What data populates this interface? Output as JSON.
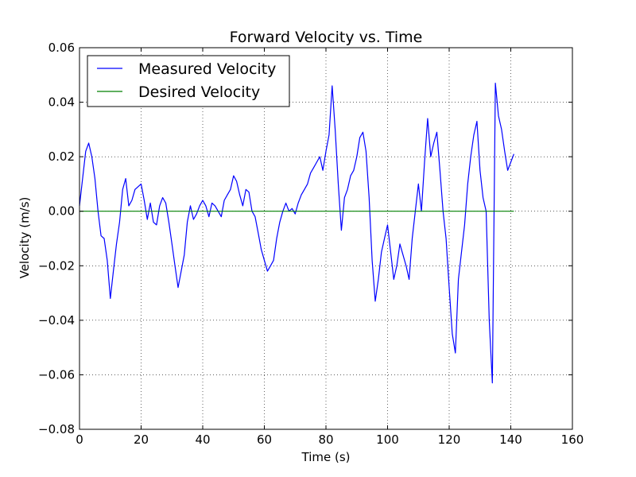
{
  "chart_data": {
    "type": "line",
    "title": "Forward Velocity vs. Time",
    "xlabel": "Time (s)",
    "ylabel": "Velocity (m/s)",
    "xlim": [
      0,
      160
    ],
    "ylim": [
      -0.08,
      0.06
    ],
    "xticks": [
      0,
      20,
      40,
      60,
      80,
      100,
      120,
      140,
      160
    ],
    "xtick_labels": [
      "0",
      "20",
      "40",
      "60",
      "80",
      "100",
      "120",
      "140",
      "160"
    ],
    "yticks": [
      -0.08,
      -0.06,
      -0.04,
      -0.02,
      0.0,
      0.02,
      0.04,
      0.06
    ],
    "ytick_labels": [
      "−0.08",
      "−0.06",
      "−0.04",
      "−0.02",
      "0.00",
      "0.02",
      "0.04",
      "0.06"
    ],
    "grid": true,
    "legend_position": "top-left",
    "series": [
      {
        "name": "Measured Velocity",
        "color": "#0000ff",
        "x": [
          0,
          1,
          2,
          3,
          4,
          5,
          6,
          7,
          8,
          9,
          10,
          11,
          12,
          13,
          14,
          15,
          16,
          17,
          18,
          19,
          20,
          21,
          22,
          23,
          24,
          25,
          26,
          27,
          28,
          29,
          30,
          31,
          32,
          33,
          34,
          35,
          36,
          37,
          38,
          39,
          40,
          41,
          42,
          43,
          44,
          45,
          46,
          47,
          48,
          49,
          50,
          51,
          52,
          53,
          54,
          55,
          56,
          57,
          58,
          59,
          60,
          61,
          62,
          63,
          64,
          65,
          66,
          67,
          68,
          69,
          70,
          71,
          72,
          73,
          74,
          75,
          76,
          77,
          78,
          79,
          80,
          81,
          82,
          83,
          84,
          85,
          86,
          87,
          88,
          89,
          90,
          91,
          92,
          93,
          94,
          95,
          96,
          97,
          98,
          99,
          100,
          101,
          102,
          103,
          104,
          105,
          106,
          107,
          108,
          109,
          110,
          111,
          112,
          113,
          114,
          115,
          116,
          117,
          118,
          119,
          120,
          121,
          122,
          123,
          124,
          125,
          126,
          127,
          128,
          129,
          130,
          131,
          132,
          133,
          134,
          135,
          136,
          137,
          138,
          139,
          140,
          141
        ],
        "y": [
          0.002,
          0.012,
          0.022,
          0.025,
          0.02,
          0.012,
          0.0,
          -0.009,
          -0.01,
          -0.018,
          -0.032,
          -0.022,
          -0.012,
          -0.004,
          0.008,
          0.012,
          0.002,
          0.004,
          0.008,
          0.009,
          0.01,
          0.004,
          -0.003,
          0.003,
          -0.004,
          -0.005,
          0.002,
          0.005,
          0.003,
          -0.004,
          -0.012,
          -0.02,
          -0.028,
          -0.022,
          -0.016,
          -0.004,
          0.002,
          -0.003,
          -0.001,
          0.002,
          0.004,
          0.002,
          -0.002,
          0.003,
          0.002,
          0.0,
          -0.002,
          0.004,
          0.006,
          0.008,
          0.013,
          0.011,
          0.006,
          0.002,
          0.008,
          0.007,
          0.0,
          -0.002,
          -0.008,
          -0.014,
          -0.018,
          -0.022,
          -0.02,
          -0.018,
          -0.01,
          -0.004,
          0.0,
          0.003,
          0.0,
          0.001,
          -0.001,
          0.003,
          0.006,
          0.008,
          0.01,
          0.014,
          0.016,
          0.018,
          0.02,
          0.015,
          0.022,
          0.028,
          0.046,
          0.03,
          0.01,
          -0.007,
          0.005,
          0.008,
          0.013,
          0.015,
          0.02,
          0.027,
          0.029,
          0.022,
          0.005,
          -0.018,
          -0.033,
          -0.025,
          -0.015,
          -0.01,
          -0.005,
          -0.015,
          -0.025,
          -0.02,
          -0.012,
          -0.016,
          -0.02,
          -0.025,
          -0.01,
          0.0,
          0.01,
          0.0,
          0.018,
          0.034,
          0.02,
          0.025,
          0.029,
          0.015,
          0.0,
          -0.01,
          -0.028,
          -0.045,
          -0.052,
          -0.025,
          -0.015,
          -0.005,
          0.01,
          0.02,
          0.028,
          0.033,
          0.015,
          0.005,
          0.0,
          -0.04,
          -0.063,
          0.047,
          0.035,
          0.03,
          0.022,
          0.015,
          0.018,
          0.021
        ]
      },
      {
        "name": "Desired Velocity",
        "color": "#008000",
        "x": [
          0,
          141
        ],
        "y": [
          0.0,
          0.0
        ]
      }
    ]
  }
}
